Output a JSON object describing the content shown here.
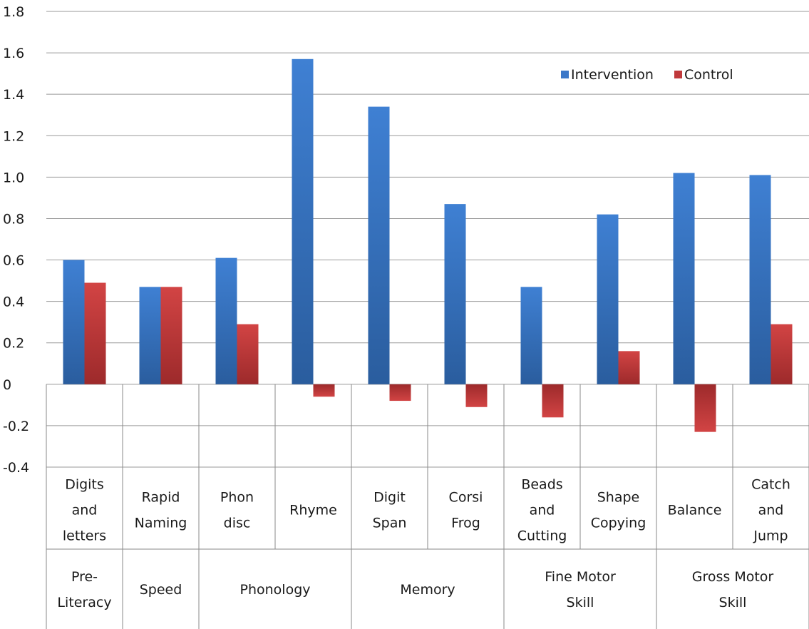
{
  "chart_data": {
    "type": "bar",
    "ylim": [
      -0.4,
      1.8
    ],
    "y_ticks": [
      "1.8",
      "1.6",
      "1.4",
      "1.2",
      "1.0",
      "0.8",
      "0.6",
      "0.4",
      "0.2",
      "0",
      "-0.2",
      "-0.4"
    ],
    "y_tick_values": [
      1.8,
      1.6,
      1.4,
      1.2,
      1.0,
      0.8,
      0.6,
      0.4,
      0.2,
      0,
      -0.2,
      -0.4
    ],
    "grid": true,
    "legend_position": "top-right",
    "categories": [
      [
        "Digits",
        "and",
        "letters"
      ],
      [
        "Rapid",
        "Naming"
      ],
      [
        "Phon",
        "disc"
      ],
      [
        "Rhyme"
      ],
      [
        "Digit",
        "Span"
      ],
      [
        "Corsi",
        "Frog"
      ],
      [
        "Beads",
        "and",
        "Cutting"
      ],
      [
        "Shape",
        "Copying"
      ],
      [
        "Balance"
      ],
      [
        "Catch",
        "and",
        "Jump"
      ]
    ],
    "groups": [
      {
        "label": [
          "Pre-",
          "Literacy"
        ],
        "span": 1
      },
      {
        "label": [
          "Speed"
        ],
        "span": 1
      },
      {
        "label": [
          "Phonology"
        ],
        "span": 2
      },
      {
        "label": [
          "Memory"
        ],
        "span": 2
      },
      {
        "label": [
          "Fine Motor",
          "Skill"
        ],
        "span": 2
      },
      {
        "label": [
          "Gross Motor",
          "Skill"
        ],
        "span": 2
      }
    ],
    "series": [
      {
        "name": "Intervention",
        "color": "#3b78c9",
        "values": [
          0.6,
          0.47,
          0.61,
          1.57,
          1.34,
          0.87,
          0.47,
          0.82,
          1.02,
          1.01
        ]
      },
      {
        "name": "Control",
        "color": "#c0393b",
        "values": [
          0.49,
          0.47,
          0.29,
          -0.06,
          -0.08,
          -0.11,
          -0.16,
          0.16,
          -0.23,
          0.29
        ]
      }
    ]
  }
}
